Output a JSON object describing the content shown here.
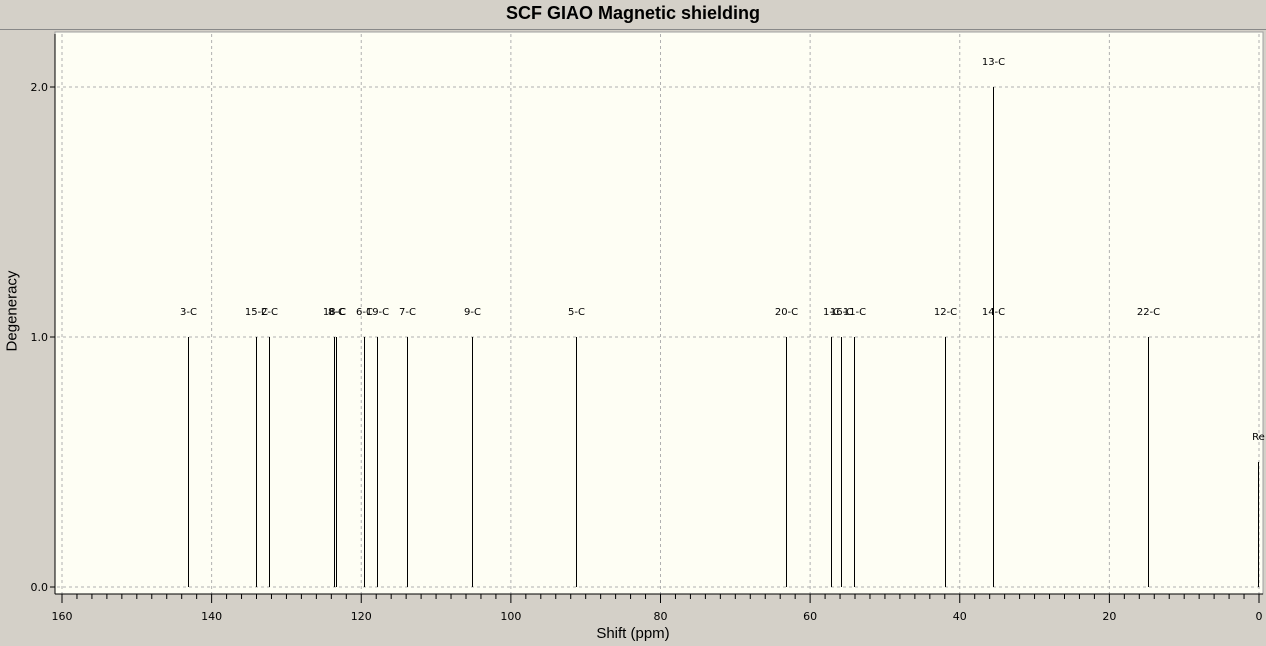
{
  "chart_data": {
    "type": "bar",
    "title": "SCF GIAO Magnetic shielding",
    "xlabel": "Shift (ppm)",
    "ylabel": "Degeneracy",
    "xlim": [
      160,
      0
    ],
    "ylim": [
      0,
      2.2
    ],
    "x_ticks": [
      "160",
      "140",
      "120",
      "100",
      "80",
      "60",
      "40",
      "20",
      "0"
    ],
    "y_ticks": [
      "0.0",
      "1.0",
      "2.0"
    ],
    "grid": true,
    "peaks": [
      {
        "label": "3-C",
        "x": 143.2,
        "y": 1
      },
      {
        "label": "15-C",
        "x": 134.1,
        "y": 1
      },
      {
        "label": "2-C",
        "x": 132.3,
        "y": 1
      },
      {
        "label": "18-C",
        "x": 123.7,
        "y": 1
      },
      {
        "label": "8-C",
        "x": 123.4,
        "y": 1
      },
      {
        "label": "6-C",
        "x": 119.6,
        "y": 1
      },
      {
        "label": "19-C",
        "x": 117.9,
        "y": 1
      },
      {
        "label": "7-C",
        "x": 113.9,
        "y": 1
      },
      {
        "label": "9-C",
        "x": 105.2,
        "y": 1
      },
      {
        "label": "5-C",
        "x": 91.3,
        "y": 1
      },
      {
        "label": "20-C",
        "x": 63.2,
        "y": 1
      },
      {
        "label": "1-C",
        "x": 57.2,
        "y": 1
      },
      {
        "label": "16-C",
        "x": 55.9,
        "y": 1
      },
      {
        "label": "11-C",
        "x": 54.2,
        "y": 1
      },
      {
        "label": "12-C",
        "x": 42.0,
        "y": 1
      },
      {
        "label": "13-C",
        "x": 35.6,
        "y": 2
      },
      {
        "label": "14-C",
        "x": 35.6,
        "y": 1
      },
      {
        "label": "22-C",
        "x": 14.9,
        "y": 1
      },
      {
        "label": "Re",
        "x": 0.1,
        "y": 0.5
      }
    ]
  },
  "colors": {
    "plot_background": "#fefef4",
    "frame_background": "#d4d0c8",
    "grid": "#b0b0b0",
    "peak": "#000000"
  }
}
